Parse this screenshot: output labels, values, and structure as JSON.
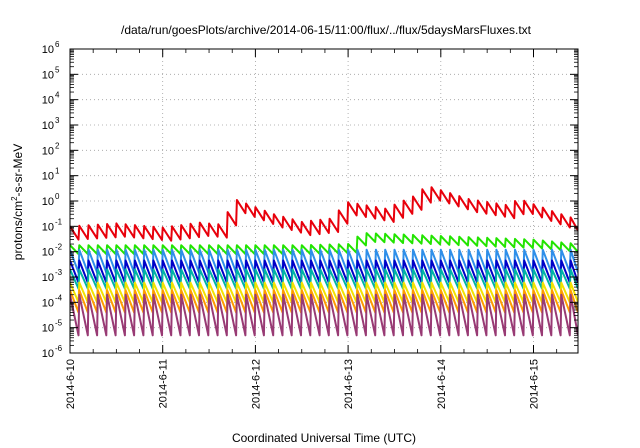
{
  "chart_data": {
    "type": "line",
    "title": "/data/run/goesPlots/archive/2014-06-15/11:00/flux/../flux/5daysMarsFluxes.txt",
    "xlabel": "Coordinated Universal Time (UTC)",
    "ylabel": {
      "prefix": "protons/cm",
      "sup": "2",
      "suffix": "-s-sr-MeV"
    },
    "yscale": "log",
    "ylim": [
      1e-06,
      1000000.0
    ],
    "xlim_days": [
      0,
      5.48
    ],
    "x_ticks": [
      {
        "day": 0,
        "label": "2014-6-10"
      },
      {
        "day": 1,
        "label": "2014-6-11"
      },
      {
        "day": 2,
        "label": "2014-6-12"
      },
      {
        "day": 3,
        "label": "2014-6-13"
      },
      {
        "day": 4,
        "label": "2014-6-14"
      },
      {
        "day": 5,
        "label": "2014-6-15"
      }
    ],
    "y_ticks": [
      {
        "exp": -6,
        "base": "10",
        "sup": "-6"
      },
      {
        "exp": -5,
        "base": "10",
        "sup": "-5"
      },
      {
        "exp": -4,
        "base": "10",
        "sup": "-4"
      },
      {
        "exp": -3,
        "base": "10",
        "sup": "-3"
      },
      {
        "exp": -2,
        "base": "10",
        "sup": "-2"
      },
      {
        "exp": -1,
        "base": "10",
        "sup": "-1"
      },
      {
        "exp": 0,
        "base": "10",
        "sup": "0"
      },
      {
        "exp": 1,
        "base": "10",
        "sup": "1"
      },
      {
        "exp": 2,
        "base": "10",
        "sup": "2"
      },
      {
        "exp": 3,
        "base": "10",
        "sup": "3"
      },
      {
        "exp": 4,
        "base": "10",
        "sup": "4"
      },
      {
        "exp": 5,
        "base": "10",
        "sup": "5"
      },
      {
        "exp": 6,
        "base": "10",
        "sup": "6"
      }
    ],
    "grid": true,
    "sawtooth_period_days": 0.1,
    "series": [
      {
        "color": "#e8000b",
        "kind": "anchor",
        "drop": 0.3,
        "anchors": [
          [
            0,
            0.1
          ],
          [
            0.5,
            0.13
          ],
          [
            1.0,
            0.09
          ],
          [
            1.4,
            0.14
          ],
          [
            1.6,
            0.12
          ],
          [
            1.8,
            1.1
          ],
          [
            2.2,
            0.3
          ],
          [
            2.5,
            0.15
          ],
          [
            2.8,
            0.2
          ],
          [
            3.0,
            0.9
          ],
          [
            3.4,
            0.5
          ],
          [
            3.7,
            1.5
          ],
          [
            3.85,
            4.0
          ],
          [
            4.3,
            1.2
          ],
          [
            4.7,
            0.7
          ],
          [
            4.85,
            1.2
          ],
          [
            5.2,
            0.4
          ],
          [
            5.48,
            0.18
          ]
        ]
      },
      {
        "color": "#22e400",
        "kind": "anchor",
        "drop": 0.45,
        "anchors": [
          [
            0,
            0.018
          ],
          [
            2.5,
            0.018
          ],
          [
            3.0,
            0.02
          ],
          [
            3.15,
            0.055
          ],
          [
            5.0,
            0.03
          ],
          [
            5.48,
            0.02
          ]
        ]
      },
      {
        "color": "#2f8fe9",
        "kind": "band",
        "low": 0.0015,
        "high": 0.012
      },
      {
        "color": "#0000c8",
        "kind": "band",
        "low": 0.0006,
        "high": 0.0045
      },
      {
        "color": "#00b3a6",
        "kind": "band",
        "low": 0.00035,
        "high": 0.002
      },
      {
        "color": "#f2e200",
        "kind": "band",
        "low": 0.0001,
        "high": 0.0006
      },
      {
        "color": "#ff9b00",
        "kind": "band",
        "low": 4e-05,
        "high": 0.0003
      },
      {
        "color": "#983a74",
        "kind": "band",
        "low": 5e-06,
        "high": 0.0002
      }
    ]
  }
}
